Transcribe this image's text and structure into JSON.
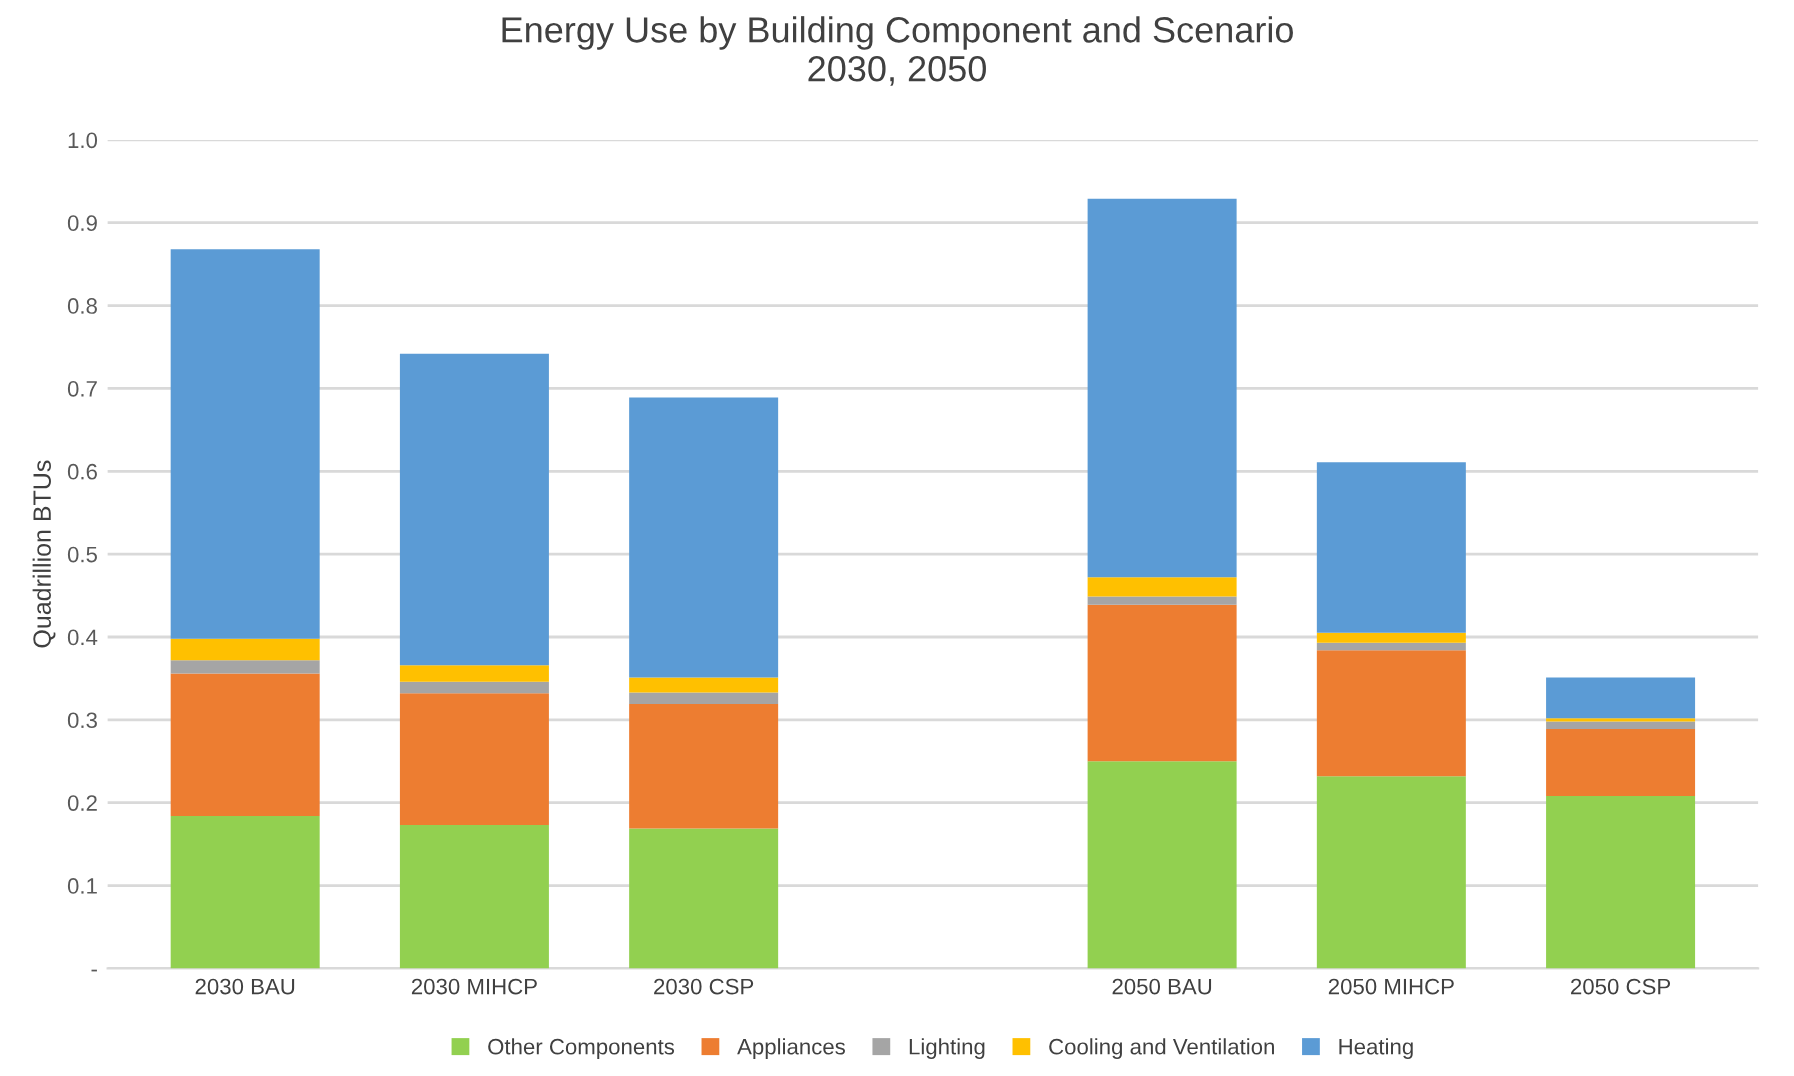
{
  "chart_data": {
    "type": "bar",
    "stacked": true,
    "title": "Energy Use by Building Component and Scenario\n2030, 2050",
    "ylabel": "Quadrillion BTUs",
    "categories": [
      "2030 BAU",
      "2030 MIHCP",
      "2030 CSP",
      null,
      "2050 BAU",
      "2050 MIHCP",
      "2050 CSP"
    ],
    "series": [
      {
        "name": "Other Components",
        "color": "#92d050",
        "values": [
          0.184,
          0.173,
          0.169,
          null,
          0.25,
          0.232,
          0.208
        ]
      },
      {
        "name": "Appliances",
        "color": "#ed7d31",
        "values": [
          0.172,
          0.159,
          0.15,
          null,
          0.189,
          0.152,
          0.081
        ]
      },
      {
        "name": "Lighting",
        "color": "#a5a5a5",
        "values": [
          0.016,
          0.014,
          0.014,
          null,
          0.01,
          0.009,
          0.009
        ]
      },
      {
        "name": "Cooling and Ventilation",
        "color": "#ffc000",
        "values": [
          0.026,
          0.02,
          0.018,
          null,
          0.023,
          0.012,
          0.004
        ]
      },
      {
        "name": "Heating",
        "color": "#5b9bd5",
        "values": [
          0.47,
          0.376,
          0.338,
          null,
          0.457,
          0.206,
          0.049
        ]
      }
    ],
    "ylim": [
      0,
      1.0
    ],
    "yticks": [
      {
        "value": 0,
        "label": "-"
      },
      0.1,
      0.2,
      0.3,
      0.4,
      0.5,
      0.6,
      0.7,
      0.8,
      0.9,
      {
        "value": 1.0,
        "label": "1.0"
      }
    ],
    "grid": "y",
    "legend": "bottom"
  }
}
